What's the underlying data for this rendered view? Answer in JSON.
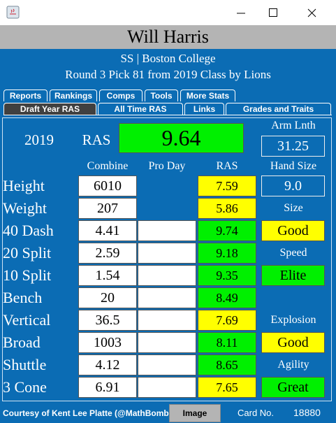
{
  "window": {
    "name": "Will Harris",
    "position_school": "SS | Boston College",
    "draft_line": "Round 3 Pick 81 from 2019 Class by Lions"
  },
  "tabs_top": [
    "Reports",
    "Rankings",
    "Comps",
    "Tools",
    "More Stats"
  ],
  "tabs_bottom": [
    "Draft Year RAS",
    "All Time RAS",
    "Links",
    "Grades and Traits"
  ],
  "summary": {
    "year": "2019",
    "ras_label": "RAS",
    "ras_value": "9.64",
    "arm_label": "Arm Lnth",
    "arm_value": "31.25"
  },
  "columns": [
    "Combine",
    "Pro Day",
    "RAS"
  ],
  "rows": [
    {
      "label": "Height",
      "combine": "6010",
      "ras": "7.59",
      "color": "#ffff00"
    },
    {
      "label": "Weight",
      "combine": "207",
      "ras": "5.86",
      "color": "#ffff00"
    },
    {
      "label": "40 Dash",
      "combine": "4.41",
      "ras": "9.74",
      "color": "#00f000"
    },
    {
      "label": "20 Split",
      "combine": "2.59",
      "ras": "9.18",
      "color": "#00f000"
    },
    {
      "label": "10 Split",
      "combine": "1.54",
      "ras": "9.35",
      "color": "#00f000"
    },
    {
      "label": "Bench",
      "combine": "20",
      "ras": "8.49",
      "color": "#00f000"
    },
    {
      "label": "Vertical",
      "combine": "36.5",
      "ras": "7.69",
      "color": "#ffff00"
    },
    {
      "label": "Broad",
      "combine": "1003",
      "ras": "8.11",
      "color": "#00f000"
    },
    {
      "label": "Shuttle",
      "combine": "4.12",
      "ras": "8.65",
      "color": "#00f000"
    },
    {
      "label": "3 Cone",
      "combine": "6.91",
      "ras": "7.65",
      "color": "#ffff00"
    }
  ],
  "hand_size": {
    "label": "Hand Size",
    "value": "9.0"
  },
  "grades": [
    {
      "label": "Size",
      "value": "Good",
      "color": "#ffff00"
    },
    {
      "label": "Speed",
      "value": "Elite",
      "color": "#00f000"
    },
    {
      "label": "Explosion",
      "value": "Good",
      "color": "#ffff00"
    },
    {
      "label": "Agility",
      "value": "Great",
      "color": "#00f000"
    }
  ],
  "footer": {
    "credit": "Courtesy of Kent Lee Platte (@MathBomb)",
    "button": "Image",
    "card_label": "Card No.",
    "card_number": "18880"
  }
}
